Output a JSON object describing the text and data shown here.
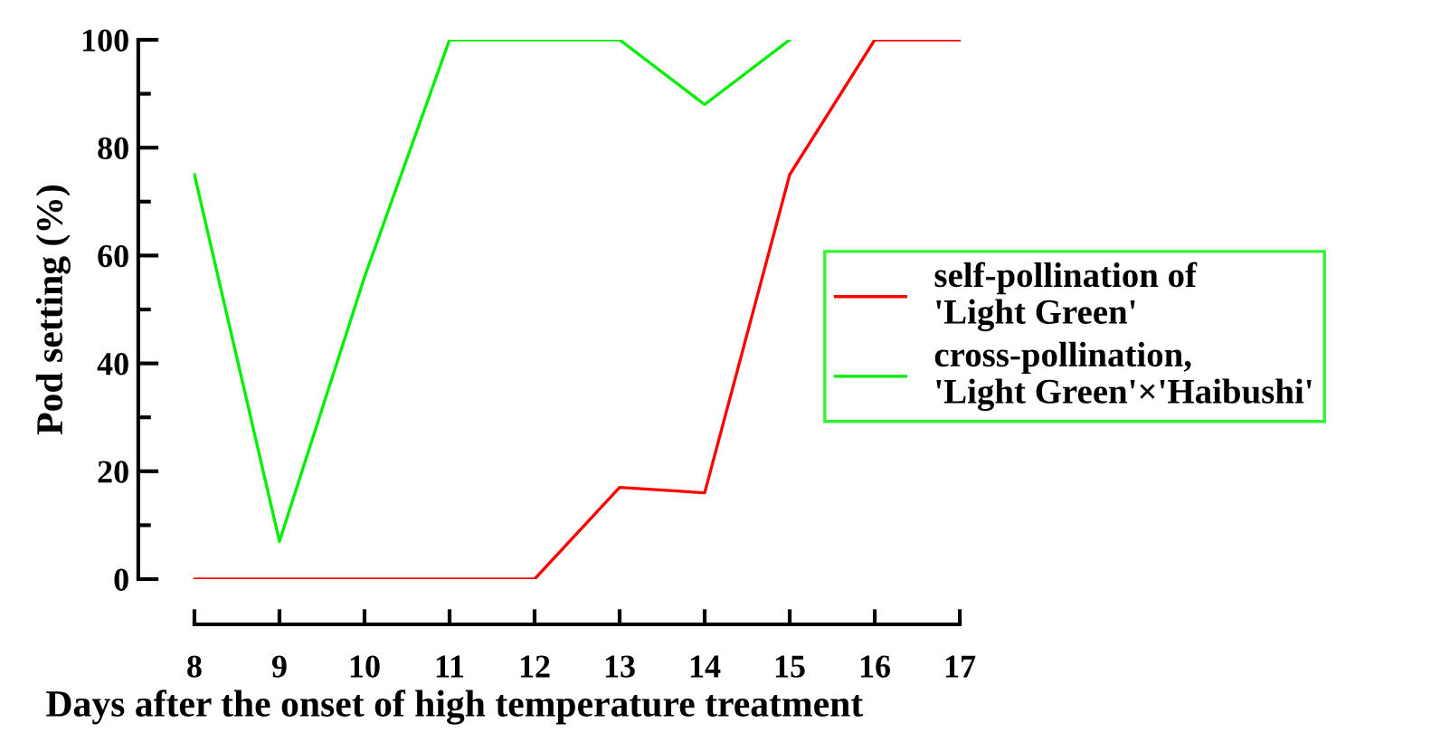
{
  "chart_data": {
    "type": "line",
    "xlabel": "Days after the onset of high temperature treatment",
    "ylabel": "Pod setting (%)",
    "xlim": [
      8,
      17
    ],
    "xticks": [
      8,
      9,
      10,
      11,
      12,
      13,
      14,
      15,
      16,
      17
    ],
    "ylim": [
      0,
      100
    ],
    "yticks": [
      0,
      20,
      40,
      60,
      80,
      100
    ],
    "grid": false,
    "legend": "right",
    "series": [
      {
        "name": "self-pollination of\n'Light Green'",
        "color": "#ff0000",
        "x": [
          8,
          9,
          10,
          11,
          12,
          13,
          14,
          15,
          16,
          17
        ],
        "values": [
          0,
          0,
          0,
          0,
          0,
          17,
          16,
          75,
          100,
          100
        ]
      },
      {
        "name": "cross-pollination,\n'Light Green'×'Haibushi'",
        "color": "#00ee00",
        "x": [
          8,
          9,
          10,
          11,
          12,
          13,
          14,
          15
        ],
        "values": [
          75,
          7,
          56,
          100,
          100,
          100,
          88,
          100
        ]
      }
    ]
  }
}
